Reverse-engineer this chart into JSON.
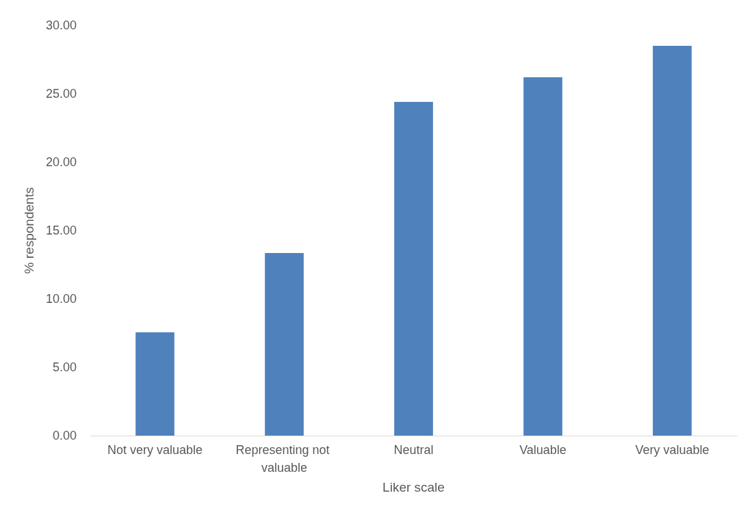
{
  "chart_data": {
    "type": "bar",
    "xlabel": "Liker scale",
    "ylabel": "% respondents",
    "categories": [
      "Not very valuable",
      "Representing not valuable",
      "Neutral",
      "Valuable",
      "Very valuable"
    ],
    "values": [
      7.55,
      13.35,
      24.4,
      26.2,
      28.5
    ],
    "color": "#4f81bd",
    "ylim": [
      0,
      30
    ],
    "yticks": [
      {
        "value": 0,
        "label": "0.00"
      },
      {
        "value": 5,
        "label": "5.00"
      },
      {
        "value": 10,
        "label": "10.00"
      },
      {
        "value": 15,
        "label": "15.00"
      },
      {
        "value": 20,
        "label": "20.00"
      },
      {
        "value": 25,
        "label": "25.00"
      },
      {
        "value": 30,
        "label": "30.00"
      }
    ],
    "grid": false
  }
}
